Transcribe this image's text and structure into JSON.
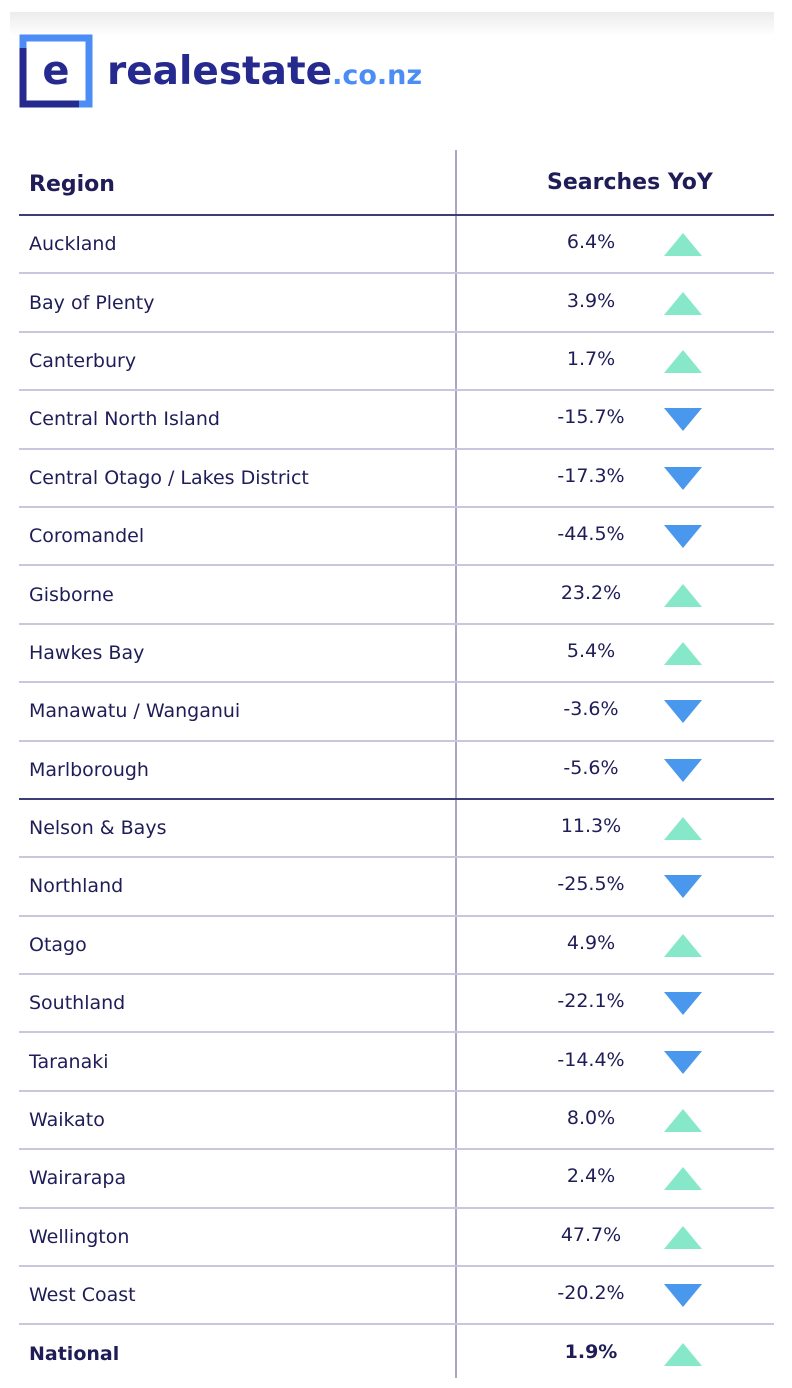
{
  "brand": {
    "name": "realestate",
    "tld": ".co.nz",
    "logo_glyph": "e",
    "colors": {
      "navy": "#262a8f",
      "blue": "#4b8df5"
    }
  },
  "table": {
    "headers": {
      "region": "Region",
      "searches": "Searches YoY"
    },
    "rows": [
      {
        "region": "Auckland",
        "value": "6.4%",
        "trend": "up"
      },
      {
        "region": "Bay of Plenty",
        "value": "3.9%",
        "trend": "up"
      },
      {
        "region": "Canterbury",
        "value": "1.7%",
        "trend": "up"
      },
      {
        "region": "Central North Island",
        "value": "-15.7%",
        "trend": "down"
      },
      {
        "region": "Central Otago / Lakes District",
        "value": "-17.3%",
        "trend": "down"
      },
      {
        "region": "Coromandel",
        "value": "-44.5%",
        "trend": "down"
      },
      {
        "region": "Gisborne",
        "value": "23.2%",
        "trend": "up"
      },
      {
        "region": "Hawkes Bay",
        "value": "5.4%",
        "trend": "up"
      },
      {
        "region": "Manawatu / Wanganui",
        "value": "-3.6%",
        "trend": "down"
      },
      {
        "region": "Marlborough",
        "value": "-5.6%",
        "trend": "down"
      },
      {
        "region": "Nelson & Bays",
        "value": "11.3%",
        "trend": "up"
      },
      {
        "region": "Northland",
        "value": "-25.5%",
        "trend": "down"
      },
      {
        "region": "Otago",
        "value": "4.9%",
        "trend": "up"
      },
      {
        "region": "Southland",
        "value": "-22.1%",
        "trend": "down"
      },
      {
        "region": "Taranaki",
        "value": "-14.4%",
        "trend": "down"
      },
      {
        "region": "Waikato",
        "value": "8.0%",
        "trend": "up"
      },
      {
        "region": "Wairarapa",
        "value": "2.4%",
        "trend": "up"
      },
      {
        "region": "Wellington",
        "value": "47.7%",
        "trend": "up"
      },
      {
        "region": "West Coast",
        "value": "-20.2%",
        "trend": "down"
      },
      {
        "region": "National",
        "value": "1.9%",
        "trend": "up",
        "bold": true
      }
    ],
    "trend_colors": {
      "up": "#86e8c8",
      "down": "#4a97ee"
    }
  }
}
